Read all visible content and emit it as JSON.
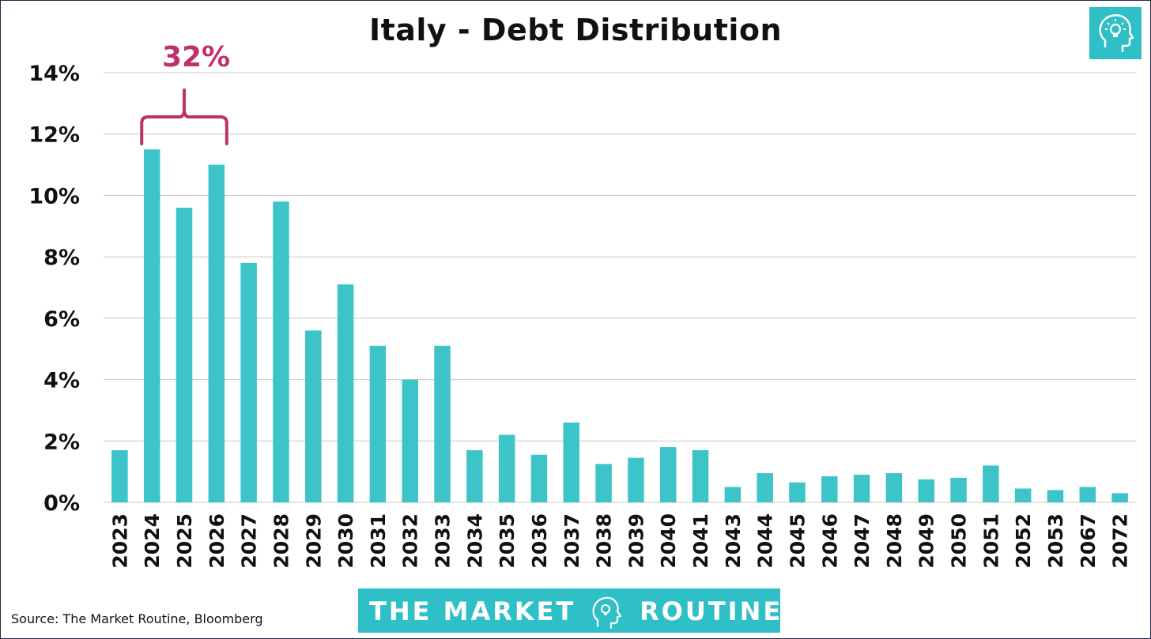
{
  "title": "Italy - Debt Distribution",
  "source": "Source: The Market Routine, Bloomberg",
  "brand": {
    "banner_left": "THE MARKET",
    "banner_right": "ROUTINE",
    "logo_icon": "head-lightbulb-icon"
  },
  "colors": {
    "bar": "#3cc4c9",
    "annotation": "#c0306a",
    "brand": "#2fbfc6",
    "grid": "#c8c8c8",
    "text": "#111111"
  },
  "chart_data": {
    "type": "bar",
    "categories": [
      "2023",
      "2024",
      "2025",
      "2026",
      "2027",
      "2028",
      "2029",
      "2030",
      "2031",
      "2032",
      "2033",
      "2034",
      "2035",
      "2036",
      "2037",
      "2038",
      "2039",
      "2040",
      "2041",
      "2043",
      "2044",
      "2045",
      "2046",
      "2047",
      "2048",
      "2049",
      "2050",
      "2051",
      "2052",
      "2053",
      "2067",
      "2072"
    ],
    "values": [
      1.7,
      11.5,
      9.6,
      11.0,
      7.8,
      9.8,
      5.6,
      7.1,
      5.1,
      4.0,
      5.1,
      1.7,
      2.2,
      1.55,
      2.6,
      1.25,
      1.45,
      1.8,
      1.7,
      0.5,
      0.95,
      0.65,
      0.85,
      0.9,
      0.95,
      0.75,
      0.8,
      1.2,
      0.45,
      0.4,
      0.5,
      0.3
    ],
    "y_ticks": [
      0,
      2,
      4,
      6,
      8,
      10,
      12,
      14
    ],
    "y_tick_labels": [
      "0%",
      "2%",
      "4%",
      "6%",
      "8%",
      "10%",
      "12%",
      "14%"
    ],
    "ylim": [
      0,
      14
    ],
    "grid": true,
    "annotation": {
      "text": "32%",
      "bracket_from": "2024",
      "bracket_to": "2026"
    }
  }
}
